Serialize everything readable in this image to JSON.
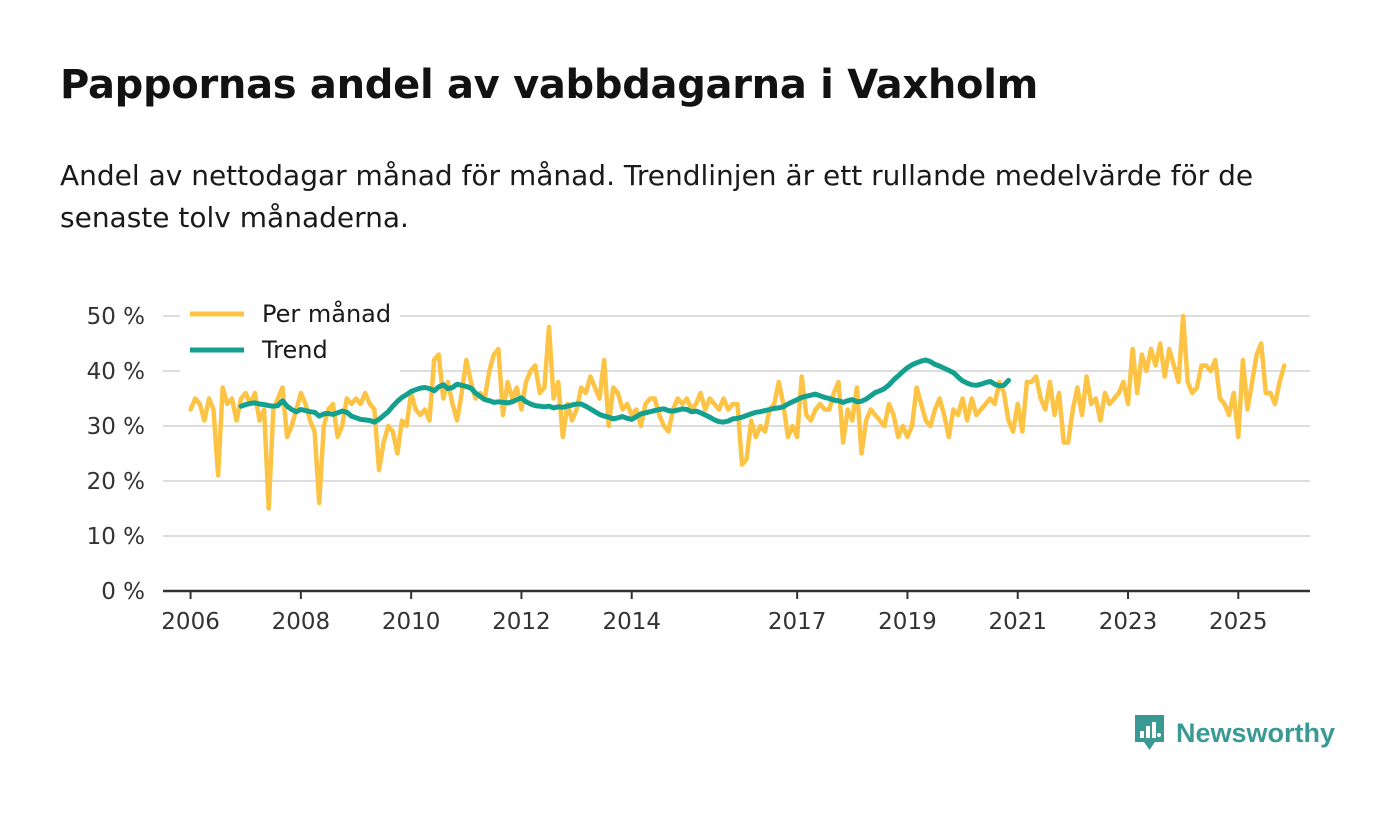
{
  "header": {
    "title": "Pappornas andel av vabbdagarna i Vaxholm",
    "subtitle": "Andel av nettodagar månad för månad. Trendlinjen är ett rullande medelvärde för de senaste tolv månaderna."
  },
  "brand": {
    "name": "Newsworthy",
    "icon": "newsworthy-logo-icon",
    "color": "#3a9a93"
  },
  "colors": {
    "monthly": "#fdc345",
    "trend": "#13a08f",
    "grid": "#dddddd",
    "axis": "#333333"
  },
  "chart_data": {
    "type": "line",
    "ylim": [
      0,
      50
    ],
    "y_ticks": [
      0,
      10,
      20,
      30,
      40,
      50
    ],
    "y_tick_labels": [
      "0 %",
      "10 %",
      "20 %",
      "30 %",
      "40 %",
      "50 %"
    ],
    "x_range": [
      2005.5,
      2026.3
    ],
    "x_ticks": [
      2006,
      2008,
      2010,
      2012,
      2014,
      2017,
      2019,
      2021,
      2023,
      2025
    ],
    "x_tick_labels": [
      "2006",
      "2008",
      "2010",
      "2012",
      "2014",
      "2017",
      "2019",
      "2021",
      "2023",
      "2025"
    ],
    "legend": {
      "position": "top-left",
      "items": [
        "Per månad",
        "Trend"
      ]
    },
    "series": [
      {
        "name": "Per månad",
        "start": 2006.0,
        "step": 0.08333,
        "values": [
          33,
          35,
          34,
          31,
          35,
          33,
          21,
          37,
          34,
          35,
          31,
          35,
          36,
          34,
          36,
          31,
          33,
          15,
          33,
          35,
          37,
          28,
          30,
          33,
          36,
          34,
          31,
          29,
          16,
          30,
          33,
          34,
          28,
          30,
          35,
          34,
          35,
          34,
          36,
          34,
          33,
          22,
          27,
          30,
          29,
          25,
          31,
          30,
          36,
          33,
          32,
          33,
          31,
          42,
          43,
          35,
          38,
          34,
          31,
          36,
          42,
          38,
          35,
          36,
          35,
          40,
          43,
          44,
          32,
          38,
          35,
          37,
          33,
          38,
          40,
          41,
          36,
          37,
          48,
          35,
          38,
          28,
          34,
          31,
          33,
          37,
          36,
          39,
          37,
          35,
          42,
          30,
          37,
          36,
          33,
          34,
          32,
          33,
          30,
          34,
          35,
          35,
          32,
          30,
          29,
          33,
          35,
          34,
          35,
          33,
          34,
          36,
          33,
          35,
          34,
          33,
          35,
          33,
          34,
          34,
          23,
          24,
          31,
          28,
          30,
          29,
          33,
          34,
          38,
          34,
          28,
          30,
          28,
          39,
          32,
          31,
          33,
          34,
          33,
          33,
          36,
          38,
          27,
          33,
          31,
          37,
          25,
          31,
          33,
          32,
          31,
          30,
          34,
          32,
          28,
          30,
          28,
          30,
          37,
          34,
          31,
          30,
          33,
          35,
          32,
          28,
          33,
          32,
          35,
          31,
          35,
          32,
          33,
          34,
          35,
          34,
          38,
          36,
          31,
          29,
          34,
          29,
          38,
          38,
          39,
          35,
          33,
          38,
          32,
          36,
          27,
          27,
          33,
          37,
          32,
          39,
          34,
          35,
          31,
          36,
          34,
          35,
          36,
          38,
          34,
          44,
          36,
          43,
          40,
          44,
          41,
          45,
          39,
          44,
          41,
          38,
          50,
          38,
          36,
          37,
          41,
          41,
          40,
          42,
          35,
          34,
          32,
          36,
          28,
          42,
          33,
          38,
          43,
          45,
          36,
          36,
          34,
          38,
          41
        ]
      },
      {
        "name": "Trend",
        "start": 2006.917,
        "step": 0.08333,
        "values": [
          33.6,
          33.9,
          34.1,
          34.2,
          34.0,
          33.9,
          33.7,
          33.6,
          33.7,
          34.6,
          33.6,
          33.0,
          32.6,
          33.0,
          32.8,
          32.6,
          32.5,
          31.8,
          32.2,
          32.3,
          32.1,
          32.4,
          32.7,
          32.5,
          31.8,
          31.5,
          31.2,
          31.1,
          31.0,
          30.7,
          31.2,
          31.9,
          32.6,
          33.6,
          34.5,
          35.2,
          35.7,
          36.3,
          36.6,
          36.9,
          37.0,
          36.8,
          36.4,
          37.1,
          37.5,
          36.8,
          37.0,
          37.6,
          37.4,
          37.2,
          36.9,
          36.0,
          35.4,
          34.8,
          34.6,
          34.3,
          34.4,
          34.3,
          34.2,
          34.4,
          34.8,
          35.1,
          34.4,
          34.0,
          33.7,
          33.6,
          33.5,
          33.6,
          33.3,
          33.5,
          33.4,
          33.6,
          33.8,
          34.0,
          34.0,
          33.6,
          33.1,
          32.6,
          32.1,
          31.8,
          31.6,
          31.3,
          31.5,
          31.7,
          31.4,
          31.2,
          31.7,
          32.2,
          32.4,
          32.6,
          32.8,
          33.0,
          33.1,
          32.8,
          32.7,
          32.9,
          33.1,
          33.0,
          32.6,
          32.7,
          32.4,
          32.0,
          31.6,
          31.1,
          30.8,
          30.7,
          30.9,
          31.3,
          31.4,
          31.6,
          31.9,
          32.2,
          32.5,
          32.6,
          32.8,
          33.0,
          33.2,
          33.3,
          33.5,
          34.0,
          34.4,
          34.8,
          35.2,
          35.4,
          35.6,
          35.8,
          35.5,
          35.2,
          35.0,
          34.7,
          34.6,
          34.3,
          34.6,
          34.8,
          34.4,
          34.5,
          34.9,
          35.5,
          36.1,
          36.4,
          36.8,
          37.5,
          38.4,
          39.1,
          39.9,
          40.6,
          41.1,
          41.5,
          41.8,
          42.0,
          41.7,
          41.2,
          40.9,
          40.5,
          40.1,
          39.7,
          38.9,
          38.2,
          37.8,
          37.5,
          37.4,
          37.6,
          37.9,
          38.1,
          37.6,
          37.3,
          37.4,
          38.3
        ]
      }
    ]
  }
}
